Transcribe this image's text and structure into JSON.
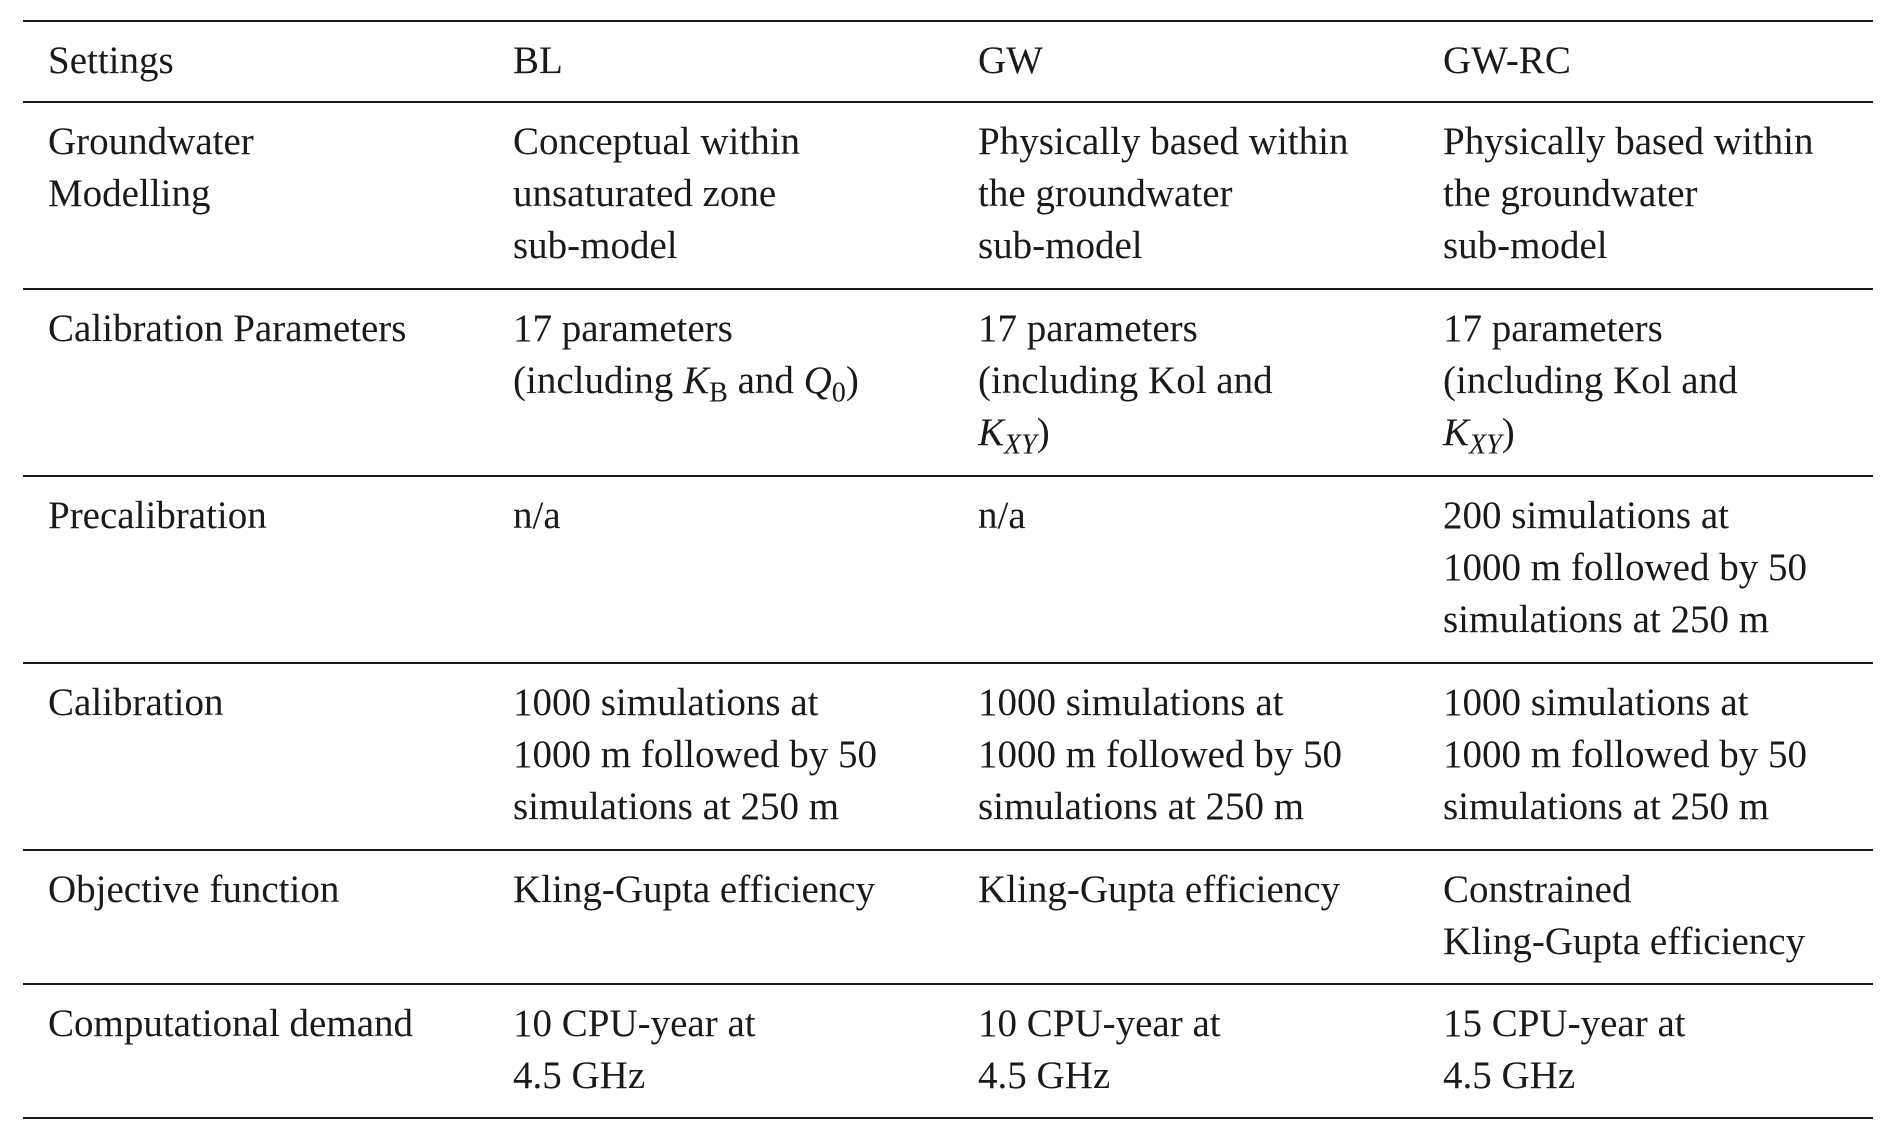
{
  "header": {
    "settings": "Settings",
    "bl": "BL",
    "gw": "GW",
    "gwrc": "GW-RC"
  },
  "rows": {
    "groundwater": {
      "label": "Groundwater\nModelling",
      "bl": "Conceptual within\nunsaturated zone\nsub-model",
      "gw": "Physically based within\nthe groundwater\nsub-model",
      "gwrc": "Physically based within\nthe groundwater\nsub-model"
    },
    "calibration_parameters": {
      "label": "Calibration Parameters",
      "bl_line1": "17 parameters",
      "bl_pre": "(including ",
      "bl_k": "K",
      "bl_k_sub": "B",
      "bl_and": " and ",
      "bl_q": "Q",
      "bl_q_sub": "0",
      "bl_post": ")",
      "gw_line1": "17 parameters",
      "gw_line2": "(including Kol and",
      "gw_k": "K",
      "gw_k_sub": "XY",
      "gw_post": ")",
      "gwrc_line1": "17 parameters",
      "gwrc_line2": "(including Kol and",
      "gwrc_k": "K",
      "gwrc_k_sub": "XY",
      "gwrc_post": ")"
    },
    "precalibration": {
      "label": "Precalibration",
      "bl": "n/a",
      "gw": "n/a",
      "gwrc": "200 simulations at\n1000 m followed by 50\nsimulations at 250 m"
    },
    "calibration": {
      "label": "Calibration",
      "bl": "1000 simulations at\n1000 m followed by 50\nsimulations at 250 m",
      "gw": "1000 simulations at\n1000 m followed by 50\nsimulations at 250 m",
      "gwrc": "1000 simulations at\n1000 m followed by 50\nsimulations at 250 m"
    },
    "objective": {
      "label": "Objective function",
      "bl": "Kling-Gupta efficiency",
      "gw": "Kling-Gupta efficiency",
      "gwrc": "Constrained\nKling-Gupta efficiency"
    },
    "computational": {
      "label": "Computational demand",
      "bl": "10 CPU-year at\n4.5 GHz",
      "gw": "10 CPU-year at\n4.5 GHz",
      "gwrc": "15 CPU-year at\n4.5 GHz"
    }
  }
}
